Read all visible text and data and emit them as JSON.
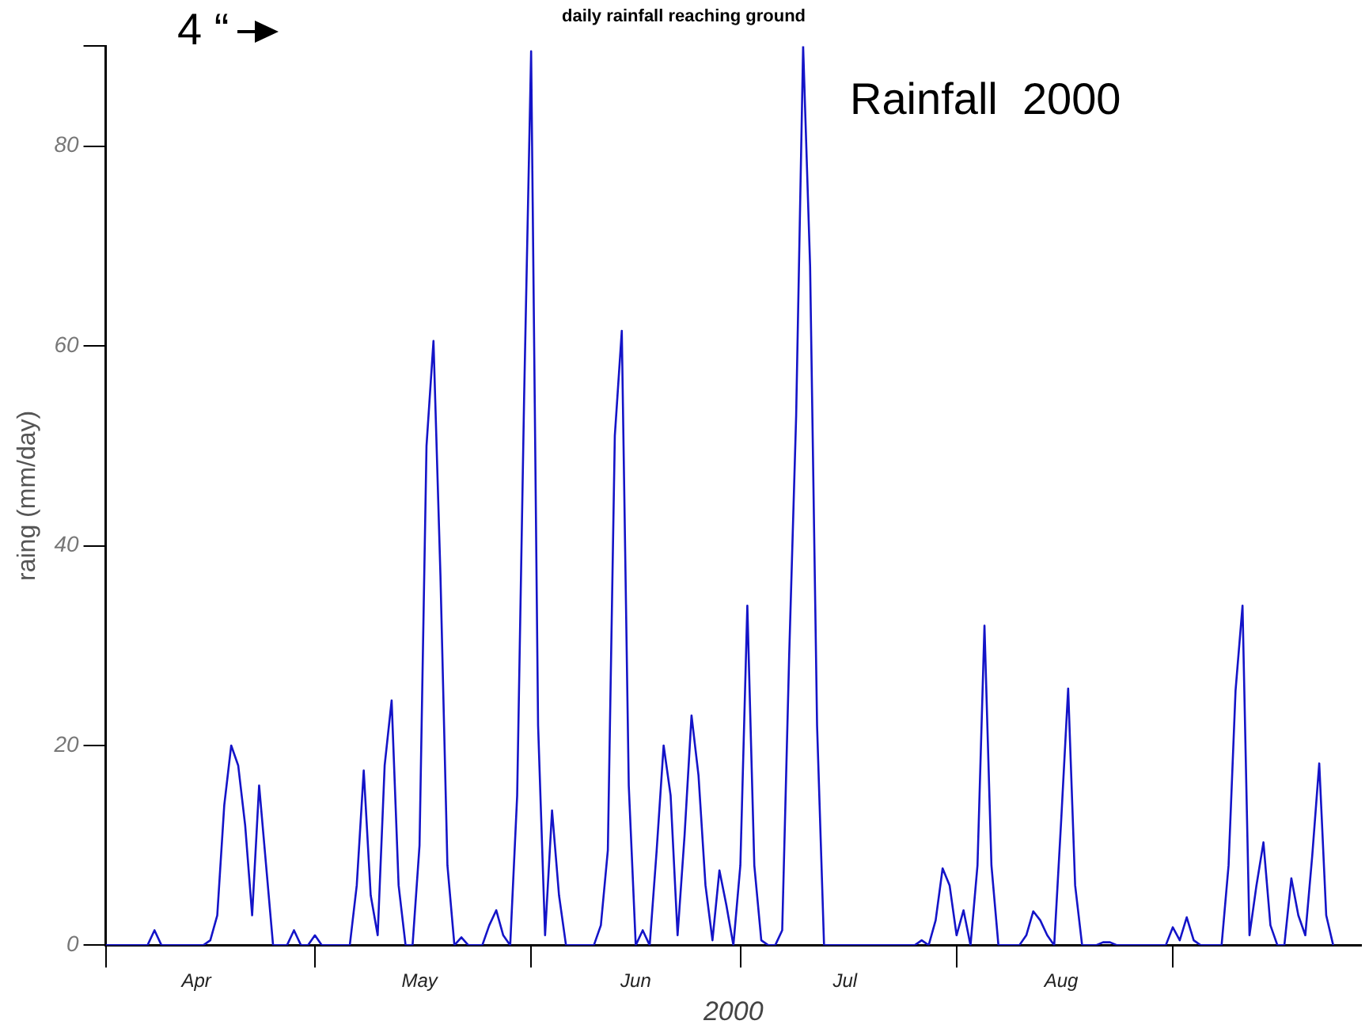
{
  "chart_data": {
    "type": "line",
    "title": "daily rainfall reaching ground",
    "xlabel": "2000",
    "ylabel": "raing (mm/day)",
    "annotations": [
      "4 “",
      "Rainfall  2000"
    ],
    "xlim": [
      "2000-04-01",
      "2000-09-28"
    ],
    "xticks": [
      {
        "value": "2000-04-01",
        "label": null
      },
      {
        "value": "2000-04-14",
        "label": "Apr"
      },
      {
        "value": "2000-05-01",
        "label": null
      },
      {
        "value": "2000-05-16",
        "label": "May"
      },
      {
        "value": "2000-06-01",
        "label": null
      },
      {
        "value": "2000-06-16",
        "label": "Jun"
      },
      {
        "value": "2000-07-01",
        "label": null
      },
      {
        "value": "2000-07-16",
        "label": "Jul"
      },
      {
        "value": "2000-08-01",
        "label": null
      },
      {
        "value": "2000-08-16",
        "label": "Aug"
      },
      {
        "value": "2000-09-01",
        "label": null
      }
    ],
    "ylim": [
      0,
      90
    ],
    "yticks": [
      0,
      20,
      40,
      60,
      80,
      {
        "value": 90,
        "label": null
      }
    ],
    "grid": false,
    "legend": false,
    "marker": "none",
    "line_style": "solid",
    "series": [
      {
        "color": "#1414c8",
        "x": [
          "2000-04-01",
          "2000-04-07",
          "2000-04-08",
          "2000-04-09",
          "2000-04-15",
          "2000-04-16",
          "2000-04-17",
          "2000-04-18",
          "2000-04-19",
          "2000-04-20",
          "2000-04-21",
          "2000-04-22",
          "2000-04-23",
          "2000-04-24",
          "2000-04-25",
          "2000-04-27",
          "2000-04-28",
          "2000-04-29",
          "2000-04-30",
          "2000-05-01",
          "2000-05-02",
          "2000-05-06",
          "2000-05-07",
          "2000-05-08",
          "2000-05-09",
          "2000-05-10",
          "2000-05-11",
          "2000-05-12",
          "2000-05-13",
          "2000-05-14",
          "2000-05-15",
          "2000-05-16",
          "2000-05-17",
          "2000-05-18",
          "2000-05-19",
          "2000-05-20",
          "2000-05-21",
          "2000-05-22",
          "2000-05-23",
          "2000-05-25",
          "2000-05-26",
          "2000-05-27",
          "2000-05-28",
          "2000-05-29",
          "2000-05-30",
          "2000-05-31",
          "2000-06-01",
          "2000-06-02",
          "2000-06-03",
          "2000-06-04",
          "2000-06-05",
          "2000-06-06",
          "2000-06-10",
          "2000-06-11",
          "2000-06-12",
          "2000-06-13",
          "2000-06-14",
          "2000-06-15",
          "2000-06-16",
          "2000-06-17",
          "2000-06-18",
          "2000-06-19",
          "2000-06-20",
          "2000-06-21",
          "2000-06-22",
          "2000-06-23",
          "2000-06-24",
          "2000-06-25",
          "2000-06-26",
          "2000-06-27",
          "2000-06-28",
          "2000-06-29",
          "2000-06-30",
          "2000-07-01",
          "2000-07-02",
          "2000-07-03",
          "2000-07-04",
          "2000-07-05",
          "2000-07-06",
          "2000-07-07",
          "2000-07-08",
          "2000-07-09",
          "2000-07-10",
          "2000-07-11",
          "2000-07-12",
          "2000-07-13",
          "2000-07-26",
          "2000-07-27",
          "2000-07-28",
          "2000-07-29",
          "2000-07-30",
          "2000-07-31",
          "2000-08-01",
          "2000-08-02",
          "2000-08-03",
          "2000-08-04",
          "2000-08-05",
          "2000-08-06",
          "2000-08-07",
          "2000-08-10",
          "2000-08-11",
          "2000-08-12",
          "2000-08-13",
          "2000-08-14",
          "2000-08-15",
          "2000-08-16",
          "2000-08-17",
          "2000-08-18",
          "2000-08-19",
          "2000-08-21",
          "2000-08-22",
          "2000-08-23",
          "2000-08-24",
          "2000-08-31",
          "2000-09-01",
          "2000-09-02",
          "2000-09-03",
          "2000-09-04",
          "2000-09-05",
          "2000-09-08",
          "2000-09-09",
          "2000-09-10",
          "2000-09-11",
          "2000-09-12",
          "2000-09-13",
          "2000-09-14",
          "2000-09-15",
          "2000-09-16",
          "2000-09-17",
          "2000-09-18",
          "2000-09-19",
          "2000-09-20",
          "2000-09-21",
          "2000-09-22",
          "2000-09-23",
          "2000-09-24"
        ],
        "values": [
          0,
          0,
          1.5,
          0,
          0,
          0.5,
          3,
          14,
          20,
          18,
          12,
          3,
          16,
          8,
          0,
          0,
          1.5,
          0,
          0,
          1,
          0,
          0,
          6,
          17.5,
          5,
          1,
          18,
          24.5,
          6,
          0,
          0,
          10,
          50,
          60.5,
          37,
          8,
          0,
          0.8,
          0,
          0,
          2,
          3.5,
          1,
          0,
          15,
          55,
          89.5,
          22,
          1,
          13.5,
          5,
          0,
          0,
          2,
          9.5,
          51,
          61.5,
          16,
          0,
          1.5,
          0,
          9.5,
          20,
          15,
          1,
          11,
          23,
          17,
          6,
          0.5,
          7.5,
          4,
          0,
          8,
          34,
          8,
          0.5,
          0,
          0,
          1.5,
          29,
          53,
          90,
          68,
          22,
          0,
          0,
          0.5,
          0,
          2.5,
          7.7,
          6,
          1,
          3.5,
          0,
          8,
          32,
          8,
          0,
          0,
          1,
          3.4,
          2.5,
          1,
          0,
          12.5,
          25.7,
          6,
          0,
          0,
          0.3,
          0.3,
          0,
          0,
          1.8,
          0.5,
          2.8,
          0.5,
          0,
          0,
          8,
          25.5,
          34,
          1,
          6,
          10.3,
          2,
          0,
          0,
          6.7,
          3,
          1,
          9,
          18.2,
          3,
          0
        ]
      }
    ]
  }
}
